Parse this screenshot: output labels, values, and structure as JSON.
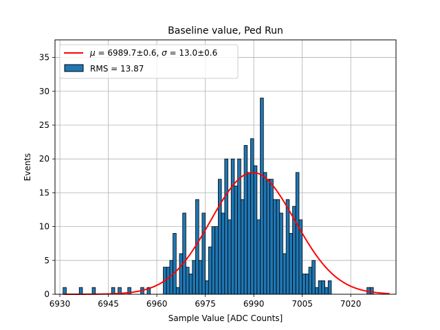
{
  "chart_data": {
    "type": "bar",
    "title": "Baseline value, Ped Run",
    "xlabel": "Sample Value [ADC Counts]",
    "ylabel": "Events",
    "xlim": [
      6928.5,
      7034
    ],
    "ylim": [
      0,
      37.6
    ],
    "xticks": [
      6930,
      6945,
      6960,
      6975,
      6990,
      7005,
      7020
    ],
    "yticks": [
      0,
      5,
      10,
      15,
      20,
      25,
      30,
      35
    ],
    "grid": true,
    "legend_position": "top-left",
    "bin_start": 6931,
    "bin_width": 1,
    "bar_color": "#1f77b4",
    "fit_color": "#ff0000",
    "values": [
      1,
      0,
      0,
      0,
      0,
      1,
      0,
      0,
      0,
      1,
      0,
      0,
      0,
      0,
      0,
      1,
      0,
      1,
      0,
      0,
      1,
      0,
      0,
      0,
      1,
      0,
      1,
      0,
      0,
      0,
      0,
      4,
      4,
      5,
      9,
      1,
      6,
      12,
      4,
      3,
      5,
      14,
      5,
      12,
      2,
      7,
      10,
      10,
      17,
      12,
      20,
      11,
      20,
      16,
      20,
      14,
      22,
      18,
      23,
      19,
      11,
      29,
      18,
      17,
      17,
      14,
      14,
      12,
      6,
      14,
      9,
      13,
      18,
      11,
      3,
      3,
      4,
      5,
      1,
      2,
      2,
      1,
      2,
      0,
      0,
      0,
      0,
      0,
      0,
      0,
      0,
      0,
      0,
      0,
      1,
      1,
      0,
      0
    ],
    "fit": {
      "mu": 6989.7,
      "sigma": 13.0,
      "amplitude": 18.0,
      "range": [
        6931,
        7032
      ]
    },
    "legend": {
      "fit_label_mu": "μ",
      "fit_label_mid": " = 6989.7±0.6, ",
      "fit_label_sigma": "σ",
      "fit_label_end": " = 13.0±0.6",
      "hist_label": "RMS = 13.87"
    }
  }
}
